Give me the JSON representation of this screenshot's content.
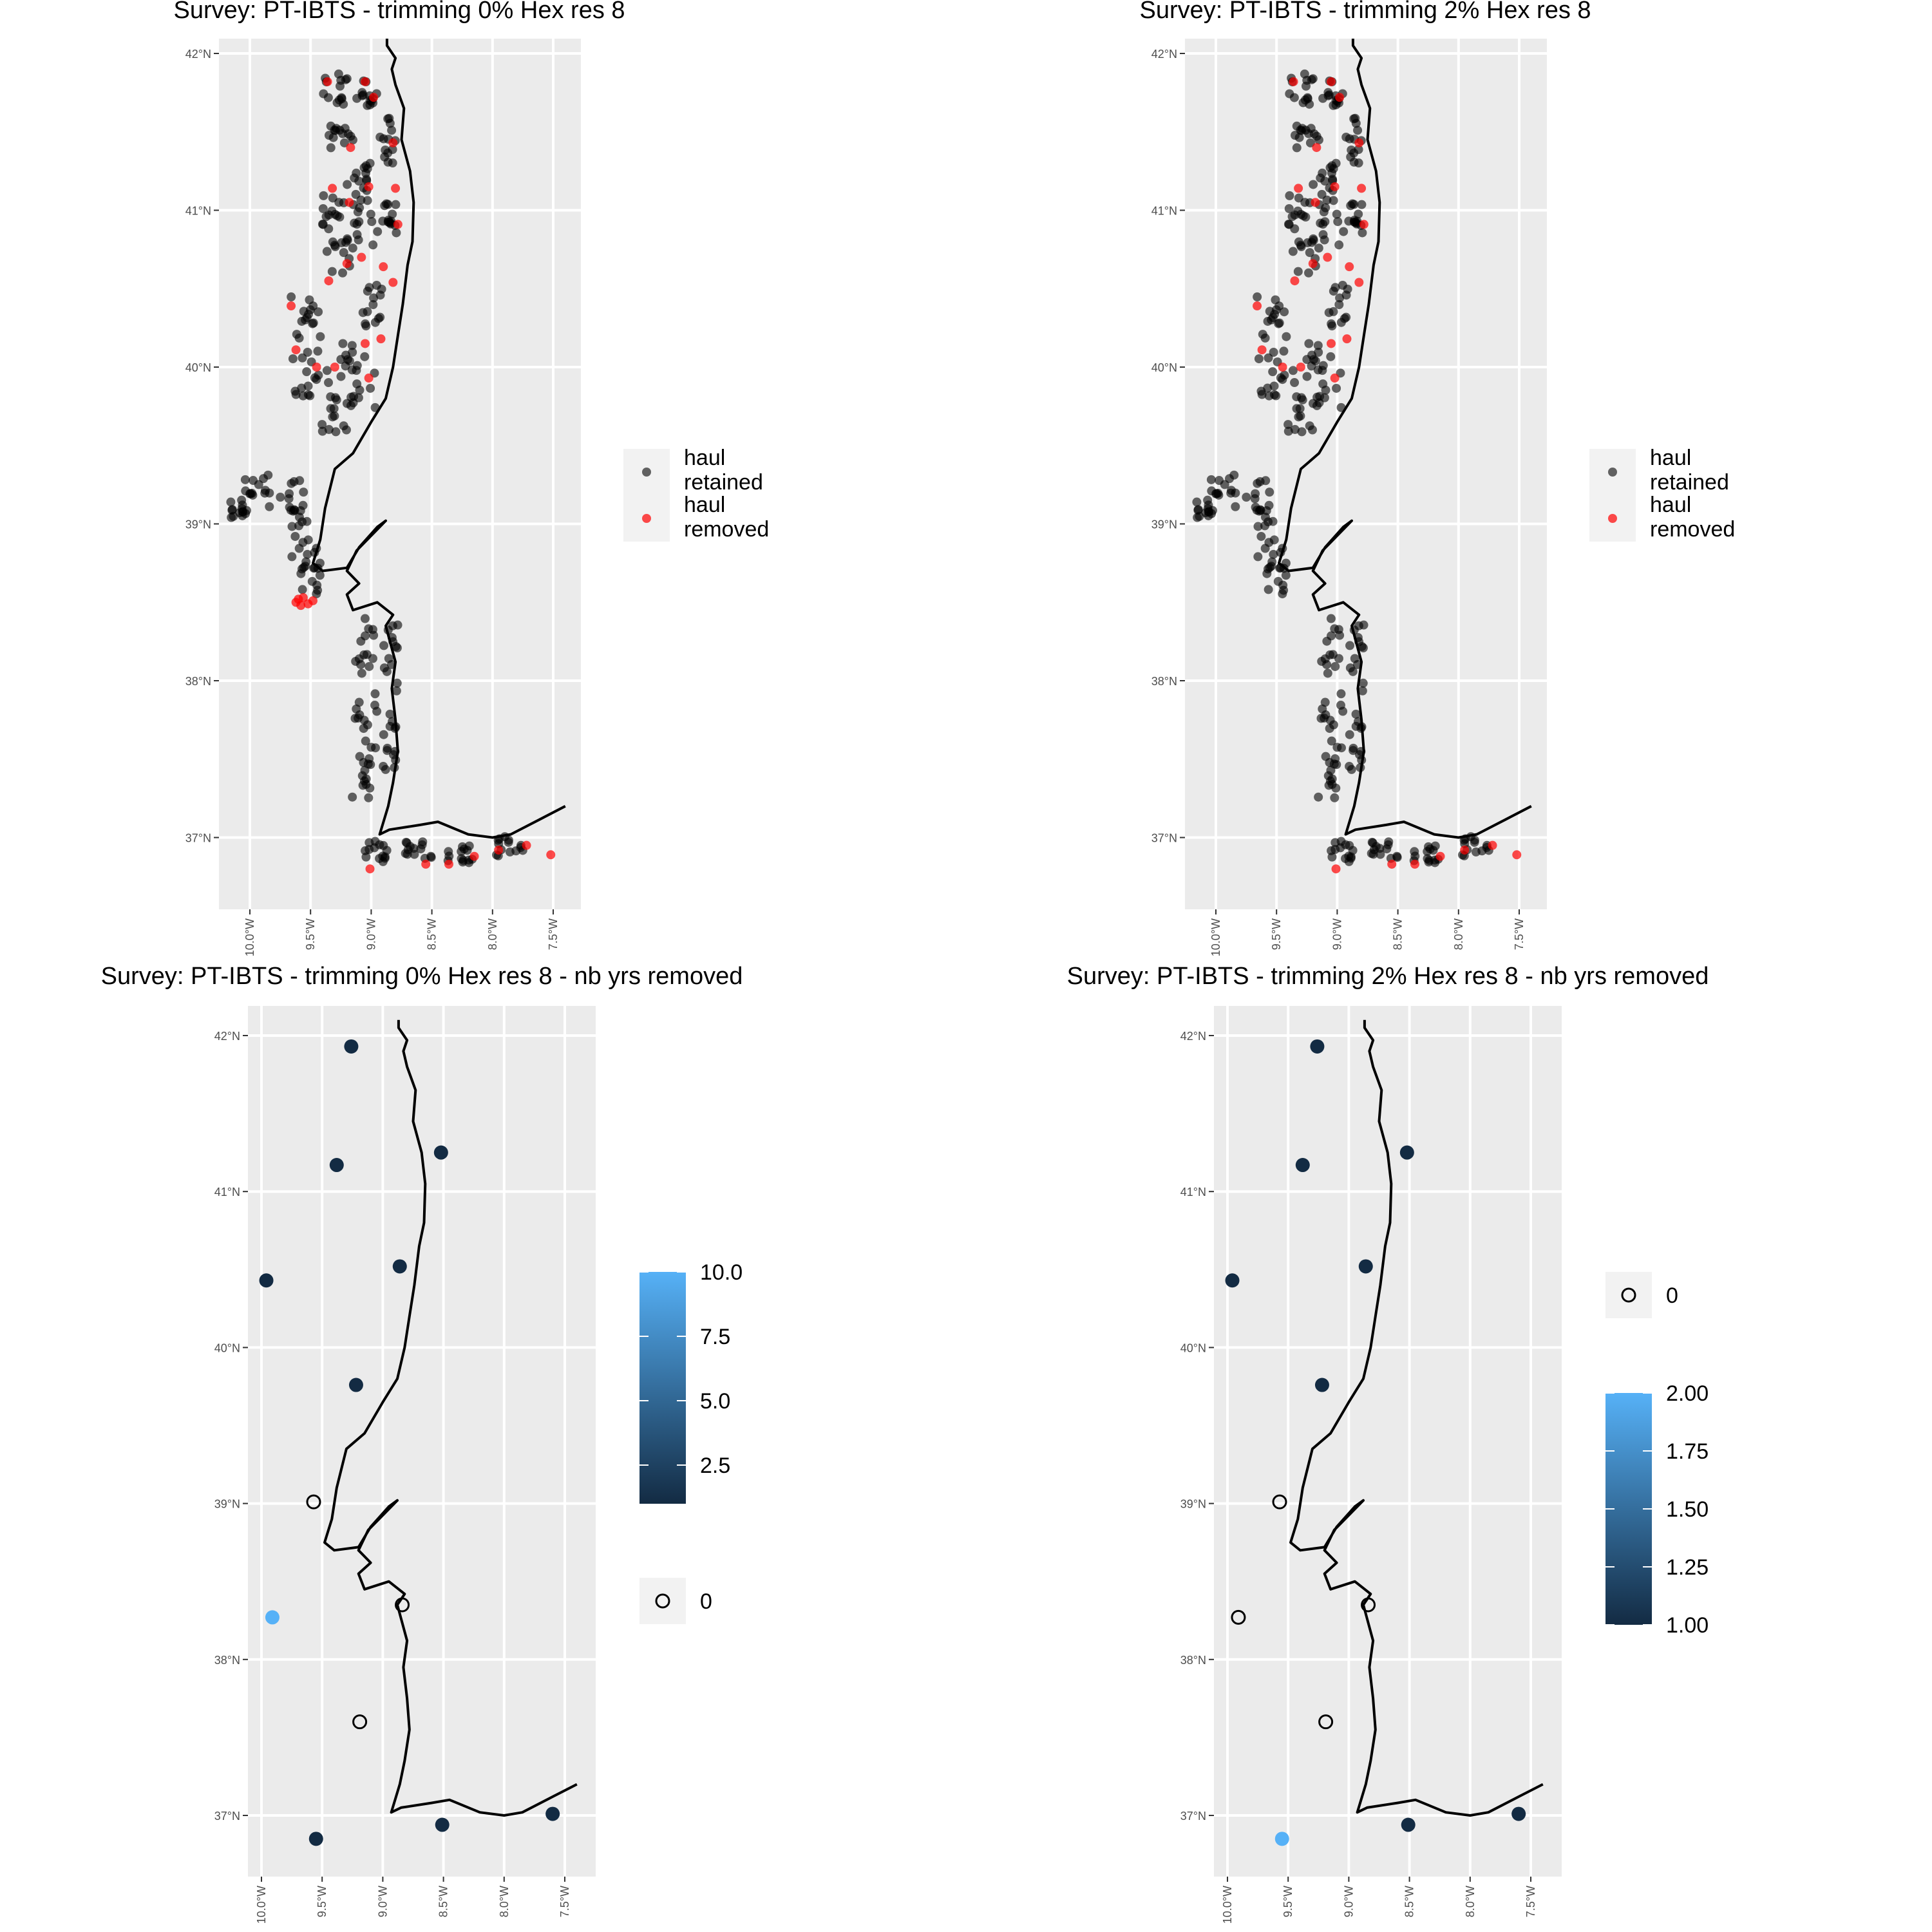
{
  "figure": {
    "colors": {
      "panel_bg": "#EBEBEB",
      "grid": "#FFFFFF",
      "coast": "#000000",
      "haul_retained": "#000000",
      "haul_removed": "#FF0000",
      "scale_low": "#132B43",
      "scale_high": "#56B1F7",
      "legend_key_bg": "#F2F2F2"
    },
    "lat_ticks": [
      "42°N",
      "41°N",
      "40°N",
      "39°N",
      "38°N",
      "37°N"
    ],
    "lon_ticks": [
      "10.0°W",
      "9.5°W",
      "9.0°W",
      "8.5°W",
      "8.0°W",
      "7.5°W"
    ],
    "coastline_lonlat": [
      [
        -8.87,
        42.1
      ],
      [
        -8.87,
        42.05
      ],
      [
        -8.8,
        41.97
      ],
      [
        -8.83,
        41.9
      ],
      [
        -8.8,
        41.8
      ],
      [
        -8.73,
        41.65
      ],
      [
        -8.75,
        41.45
      ],
      [
        -8.68,
        41.25
      ],
      [
        -8.65,
        41.05
      ],
      [
        -8.66,
        40.8
      ],
      [
        -8.7,
        40.65
      ],
      [
        -8.74,
        40.4
      ],
      [
        -8.78,
        40.2
      ],
      [
        -8.82,
        40.0
      ],
      [
        -8.88,
        39.8
      ],
      [
        -9.0,
        39.65
      ],
      [
        -9.15,
        39.45
      ],
      [
        -9.3,
        39.35
      ],
      [
        -9.38,
        39.1
      ],
      [
        -9.42,
        38.9
      ],
      [
        -9.48,
        38.75
      ],
      [
        -9.4,
        38.7
      ],
      [
        -9.2,
        38.72
      ],
      [
        -9.1,
        38.85
      ],
      [
        -8.95,
        38.98
      ],
      [
        -8.88,
        39.02
      ],
      [
        -9.12,
        38.83
      ],
      [
        -9.2,
        38.7
      ],
      [
        -9.1,
        38.62
      ],
      [
        -9.2,
        38.55
      ],
      [
        -9.15,
        38.45
      ],
      [
        -8.95,
        38.5
      ],
      [
        -8.82,
        38.42
      ],
      [
        -8.88,
        38.35
      ],
      [
        -8.8,
        38.12
      ],
      [
        -8.83,
        37.95
      ],
      [
        -8.8,
        37.75
      ],
      [
        -8.78,
        37.55
      ],
      [
        -8.82,
        37.35
      ],
      [
        -8.86,
        37.2
      ],
      [
        -8.93,
        37.02
      ],
      [
        -8.85,
        37.05
      ],
      [
        -8.6,
        37.08
      ],
      [
        -8.45,
        37.1
      ],
      [
        -8.2,
        37.02
      ],
      [
        -8.0,
        37.0
      ],
      [
        -7.85,
        37.02
      ],
      [
        -7.6,
        37.12
      ],
      [
        -7.4,
        37.2
      ]
    ],
    "panels": [
      {
        "title": "Survey: PT-IBTS - trimming 0% Hex res 8",
        "kind": "hauls",
        "legend": {
          "retained": "haul\nretained",
          "removed": "haul\nremoved"
        },
        "removed_hauls": [
          [
            -9.36,
            41.82
          ],
          [
            -9.05,
            41.82
          ],
          [
            -8.98,
            41.72
          ],
          [
            -8.82,
            41.43
          ],
          [
            -9.17,
            41.4
          ],
          [
            -8.8,
            41.14
          ],
          [
            -9.32,
            41.14
          ],
          [
            -9.18,
            41.05
          ],
          [
            -9.02,
            41.15
          ],
          [
            -8.78,
            40.91
          ],
          [
            -9.08,
            40.7
          ],
          [
            -8.9,
            40.64
          ],
          [
            -9.2,
            40.66
          ],
          [
            -8.82,
            40.54
          ],
          [
            -9.35,
            40.55
          ],
          [
            -9.66,
            40.39
          ],
          [
            -9.62,
            40.11
          ],
          [
            -9.05,
            40.15
          ],
          [
            -8.92,
            40.18
          ],
          [
            -9.45,
            40.0
          ],
          [
            -9.3,
            40.0
          ],
          [
            -9.02,
            39.93
          ],
          [
            -9.6,
            38.52
          ],
          [
            -9.58,
            38.48
          ],
          [
            -9.62,
            38.5
          ],
          [
            -9.52,
            38.49
          ],
          [
            -9.48,
            38.51
          ],
          [
            -9.56,
            38.53
          ],
          [
            -9.01,
            36.8
          ],
          [
            -8.55,
            36.83
          ],
          [
            -8.15,
            36.88
          ],
          [
            -7.95,
            36.92
          ],
          [
            -7.72,
            36.95
          ],
          [
            -7.52,
            36.89
          ],
          [
            -8.36,
            36.83
          ]
        ]
      },
      {
        "title": "Survey: PT-IBTS - trimming 2% Hex res 8",
        "kind": "hauls",
        "legend": {
          "retained": "haul\nretained",
          "removed": "haul\nremoved"
        },
        "removed_hauls": [
          [
            -9.36,
            41.82
          ],
          [
            -9.05,
            41.82
          ],
          [
            -8.98,
            41.72
          ],
          [
            -8.82,
            41.43
          ],
          [
            -9.17,
            41.4
          ],
          [
            -8.8,
            41.14
          ],
          [
            -9.32,
            41.14
          ],
          [
            -9.18,
            41.05
          ],
          [
            -9.02,
            41.15
          ],
          [
            -8.78,
            40.91
          ],
          [
            -9.08,
            40.7
          ],
          [
            -8.9,
            40.64
          ],
          [
            -9.2,
            40.66
          ],
          [
            -8.82,
            40.54
          ],
          [
            -9.35,
            40.55
          ],
          [
            -9.66,
            40.39
          ],
          [
            -9.62,
            40.11
          ],
          [
            -9.05,
            40.15
          ],
          [
            -8.92,
            40.18
          ],
          [
            -9.45,
            40.0
          ],
          [
            -9.3,
            40.0
          ],
          [
            -9.02,
            39.93
          ],
          [
            -9.01,
            36.8
          ],
          [
            -8.55,
            36.83
          ],
          [
            -8.15,
            36.88
          ],
          [
            -7.95,
            36.92
          ],
          [
            -7.72,
            36.95
          ],
          [
            -7.52,
            36.89
          ],
          [
            -8.36,
            36.83
          ]
        ]
      },
      {
        "title": "Survey: PT-IBTS - trimming 0% Hex res 8 - nb yrs removed",
        "kind": "years",
        "colorbar": {
          "min": 1,
          "max": 10,
          "ticks": [
            "2.5",
            "5.0",
            "7.5",
            "10.0"
          ],
          "tick_values": [
            2.5,
            5.0,
            7.5,
            10.0
          ]
        },
        "zero_label": "0",
        "points": [
          {
            "lon": -9.26,
            "lat": 41.93,
            "n": 1
          },
          {
            "lon": -9.38,
            "lat": 41.17,
            "n": 1
          },
          {
            "lon": -8.52,
            "lat": 41.25,
            "n": 1
          },
          {
            "lon": -9.96,
            "lat": 40.43,
            "n": 1
          },
          {
            "lon": -8.86,
            "lat": 40.52,
            "n": 1
          },
          {
            "lon": -9.22,
            "lat": 39.76,
            "n": 1
          },
          {
            "lon": -9.57,
            "lat": 39.01,
            "n": 0
          },
          {
            "lon": -9.91,
            "lat": 38.27,
            "n": 10
          },
          {
            "lon": -8.84,
            "lat": 38.35,
            "n": 0
          },
          {
            "lon": -9.19,
            "lat": 37.6,
            "n": 0
          },
          {
            "lon": -9.55,
            "lat": 36.85,
            "n": 1
          },
          {
            "lon": -8.51,
            "lat": 36.94,
            "n": 1
          },
          {
            "lon": -7.6,
            "lat": 37.01,
            "n": 1
          }
        ]
      },
      {
        "title": "Survey: PT-IBTS - trimming 2% Hex res 8 - nb yrs removed",
        "kind": "years",
        "colorbar": {
          "min": 1,
          "max": 2,
          "ticks": [
            "1.00",
            "1.25",
            "1.50",
            "1.75",
            "2.00"
          ],
          "tick_values": [
            1.0,
            1.25,
            1.5,
            1.75,
            2.0
          ]
        },
        "zero_label": "0",
        "points": [
          {
            "lon": -9.26,
            "lat": 41.93,
            "n": 1
          },
          {
            "lon": -9.38,
            "lat": 41.17,
            "n": 1
          },
          {
            "lon": -8.52,
            "lat": 41.25,
            "n": 1
          },
          {
            "lon": -9.96,
            "lat": 40.43,
            "n": 1
          },
          {
            "lon": -8.86,
            "lat": 40.52,
            "n": 1
          },
          {
            "lon": -9.22,
            "lat": 39.76,
            "n": 1
          },
          {
            "lon": -9.57,
            "lat": 39.01,
            "n": 0
          },
          {
            "lon": -9.91,
            "lat": 38.27,
            "n": 0
          },
          {
            "lon": -8.84,
            "lat": 38.35,
            "n": 0
          },
          {
            "lon": -9.19,
            "lat": 37.6,
            "n": 0
          },
          {
            "lon": -9.55,
            "lat": 36.85,
            "n": 2
          },
          {
            "lon": -8.51,
            "lat": 36.94,
            "n": 1
          },
          {
            "lon": -7.6,
            "lat": 37.01,
            "n": 1
          }
        ]
      }
    ]
  }
}
